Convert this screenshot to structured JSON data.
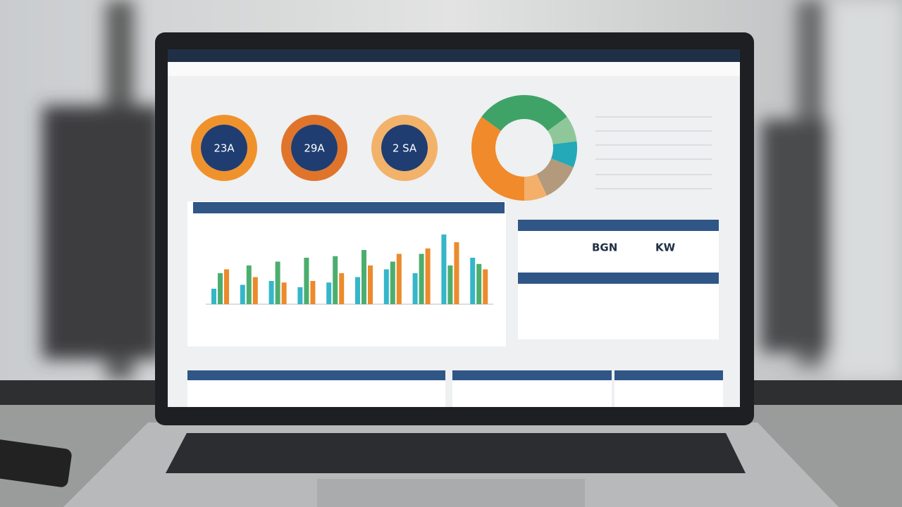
{
  "donuts": [
    {
      "label": "23A"
    },
    {
      "label": "29A"
    },
    {
      "label": "2 SA"
    }
  ],
  "panel": {
    "values": [
      "BGN",
      "KW"
    ]
  },
  "chart_data": [
    {
      "type": "bar",
      "categories": [
        null,
        null,
        null,
        null,
        null,
        null,
        null,
        null,
        null,
        null
      ],
      "ylim": [
        0,
        100
      ],
      "series": [
        {
          "color": "#35b6c9",
          "values": [
            20,
            25,
            30,
            22,
            28,
            35,
            45,
            40,
            90,
            60
          ]
        },
        {
          "color": "#4cae6e",
          "values": [
            40,
            50,
            55,
            60,
            62,
            70,
            55,
            65,
            50,
            52
          ]
        },
        {
          "color": "#ec8a2c",
          "values": [
            45,
            35,
            28,
            30,
            40,
            50,
            65,
            72,
            80,
            45
          ]
        }
      ]
    },
    {
      "type": "pie",
      "values": [
        35,
        30,
        8,
        8,
        12,
        7
      ],
      "colors": [
        "#f08a2a",
        "#3fa368",
        "#8fc79a",
        "#23a9b8",
        "#b39a7c",
        "#f4b06a"
      ]
    }
  ]
}
